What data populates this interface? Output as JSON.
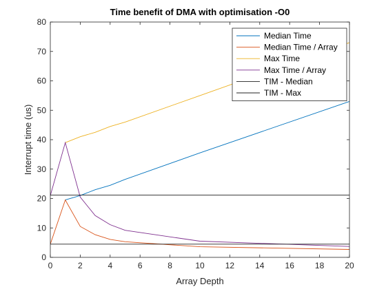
{
  "chart_data": {
    "type": "line",
    "title": "Time benefit of DMA with optimisation -O0",
    "xlabel": "Array Depth",
    "ylabel": "Interrupt time (us)",
    "xlim": [
      0,
      20
    ],
    "ylim": [
      0,
      80
    ],
    "xticks": [
      0,
      2,
      4,
      6,
      8,
      10,
      12,
      14,
      16,
      18,
      20
    ],
    "yticks": [
      0,
      10,
      20,
      30,
      40,
      50,
      60,
      70,
      80
    ],
    "grid": false,
    "legend_position": "top-right",
    "series": [
      {
        "name": "Median Time",
        "color": "#0072BD",
        "x": [
          1,
          2,
          3,
          4,
          5,
          10,
          20
        ],
        "y": [
          19.5,
          21,
          23,
          24.5,
          26.5,
          35.5,
          53
        ]
      },
      {
        "name": "Median Time / Array",
        "color": "#D95319",
        "x": [
          0,
          1,
          2,
          3,
          4,
          5,
          10,
          20
        ],
        "y": [
          4.5,
          19.5,
          10.5,
          7.7,
          6.1,
          5.3,
          3.6,
          2.7
        ]
      },
      {
        "name": "Max Time",
        "color": "#EDB120",
        "x": [
          1,
          2,
          3,
          4,
          5,
          10,
          20
        ],
        "y": [
          39,
          41,
          42.5,
          44.5,
          46,
          55,
          73
        ]
      },
      {
        "name": "Max Time / Array",
        "color": "#7E2F8E",
        "x": [
          0,
          1,
          2,
          3,
          4,
          5,
          10,
          20
        ],
        "y": [
          21,
          39,
          20.5,
          14.2,
          11.1,
          9.2,
          5.5,
          3.7
        ]
      },
      {
        "name": "TIM - Median",
        "color": "#202020",
        "x": [
          0,
          20
        ],
        "y": [
          4.5,
          4.5
        ]
      },
      {
        "name": "TIM - Max",
        "color": "#202020",
        "x": [
          0,
          20
        ],
        "y": [
          21.2,
          21.2
        ]
      }
    ]
  }
}
